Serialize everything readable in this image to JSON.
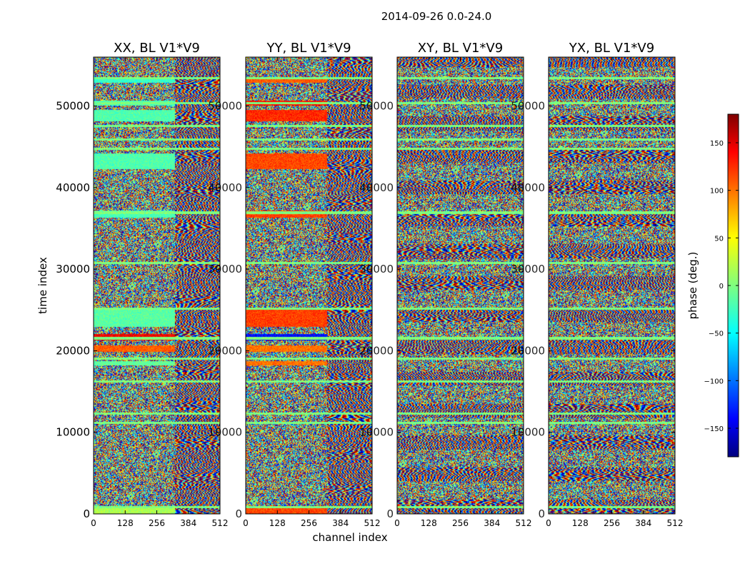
{
  "figure_title": "2014-09-26 0.0-24.0",
  "chart_data": {
    "type": "heatmap",
    "xlabel": "channel index",
    "ylabel": "time index",
    "xlim": [
      0,
      512
    ],
    "ylim": [
      0,
      56000
    ],
    "x_ticks": [
      0,
      128,
      256,
      384,
      512
    ],
    "y_ticks": [
      0,
      10000,
      20000,
      30000,
      40000,
      50000
    ],
    "colorbar": {
      "label": "phase (deg.)",
      "range": [
        -180,
        180
      ],
      "ticks": [
        150,
        100,
        50,
        0,
        -50,
        -100,
        -150
      ],
      "tick_labels": [
        "150",
        "100",
        "50",
        "0",
        "−50",
        "−100",
        "−150"
      ],
      "stops": [
        "#00007f",
        "#0000ff",
        "#00ffff",
        "#7fff7f",
        "#ffff00",
        "#ff0000",
        "#7f0000"
      ]
    },
    "panels": [
      {
        "title": "XX, BL V1*V9"
      },
      {
        "title": "YY, BL V1*V9"
      },
      {
        "title": "XY, BL V1*V9"
      },
      {
        "title": "YX, BL V1*V9"
      }
    ]
  }
}
